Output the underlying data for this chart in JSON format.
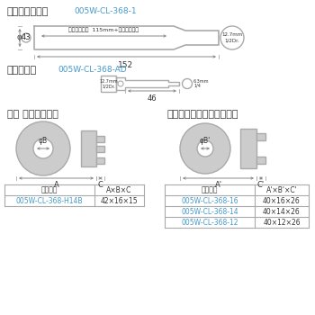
{
  "bg_color": "#ffffff",
  "text_color": "#333333",
  "blue_color": "#4499cc",
  "gray_color": "#cccccc",
  "dark_gray": "#888888",
  "line_gray": "#aaaaaa",
  "title1": "ボディホルダー",
  "code1": "005W-CL-368-1",
  "title_adapter": "アダプター",
  "code_adapter": "005W-CL-368-AD",
  "title_hub": "ハブ ポリッシャー",
  "title_stud": "スタッドボルトクリーナー",
  "dim_43": "φ43",
  "dim_152": "152",
  "dim_text": "スタッド深さ  115mm+カートリッジ",
  "dim_127": "12.7mm\n1/2Dr.",
  "dim_46": "46",
  "dim_63": "6.3mm\n1/4",
  "dim_A": "A",
  "dim_B": "φB",
  "dim_C": "C",
  "dim_Ap": "A'",
  "dim_Bp": "φB'",
  "dim_Cp": "C'",
  "table_hub_header": [
    "品　　番",
    "A×B×C"
  ],
  "table_hub_rows": [
    [
      "005W-CL-368-H14B",
      "42×16×15"
    ]
  ],
  "table_stud_header": [
    "品　　番",
    "A'×B'×C'"
  ],
  "table_stud_rows": [
    [
      "005W-CL-368-16",
      "40×16×26"
    ],
    [
      "005W-CL-368-14",
      "40×14×26"
    ],
    [
      "005W-CL-368-12",
      "40×12×26"
    ]
  ]
}
